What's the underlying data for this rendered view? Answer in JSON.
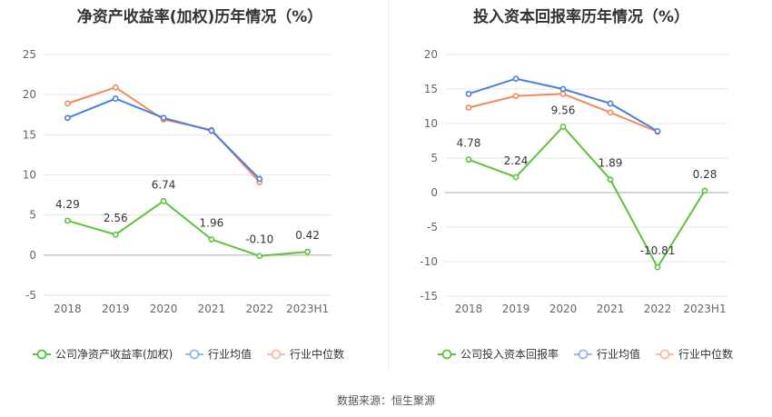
{
  "chart_data": [
    {
      "type": "line",
      "title": "净资产收益率(加权)历年情况（%）",
      "categories": [
        "2018",
        "2019",
        "2020",
        "2021",
        "2022",
        "2023H1"
      ],
      "ylim": [
        -5,
        25
      ],
      "yticks": [
        -5,
        0,
        5,
        10,
        15,
        20,
        25
      ],
      "series": [
        {
          "name": "公司净资产收益率(加权)",
          "color": "#5cc33a",
          "values": [
            4.29,
            2.56,
            6.74,
            1.96,
            -0.1,
            0.42
          ],
          "labels": [
            "4.29",
            "2.56",
            "6.74",
            "1.96",
            "-0.10",
            "0.42"
          ]
        },
        {
          "name": "行业均值",
          "color": "#4a7fd9",
          "values": [
            17.1,
            19.5,
            17.1,
            15.5,
            9.5,
            null
          ]
        },
        {
          "name": "行业中位数",
          "color": "#f08b5d",
          "values": [
            18.9,
            20.9,
            16.9,
            15.6,
            9.1,
            null
          ]
        }
      ],
      "legend": [
        "公司净资产收益率(加权)",
        "行业均值",
        "行业中位数"
      ]
    },
    {
      "type": "line",
      "title": "投入资本回报率历年情况（%）",
      "categories": [
        "2018",
        "2019",
        "2020",
        "2021",
        "2022",
        "2023H1"
      ],
      "ylim": [
        -15,
        20
      ],
      "yticks": [
        -15,
        -10,
        -5,
        0,
        5,
        10,
        15,
        20
      ],
      "series": [
        {
          "name": "公司投入资本回报率",
          "color": "#5cc33a",
          "values": [
            4.78,
            2.24,
            9.56,
            1.89,
            -10.81,
            0.28
          ],
          "labels": [
            "4.78",
            "2.24",
            "9.56",
            "1.89",
            "-10.81",
            "0.28"
          ]
        },
        {
          "name": "行业均值",
          "color": "#4a7fd9",
          "values": [
            14.3,
            16.5,
            15.0,
            12.9,
            8.9,
            null
          ]
        },
        {
          "name": "行业中位数",
          "color": "#f08b5d",
          "values": [
            12.3,
            14.0,
            14.3,
            11.6,
            8.8,
            null
          ]
        }
      ],
      "legend": [
        "公司投入资本回报率",
        "行业均值",
        "行业中位数"
      ]
    }
  ],
  "source": {
    "label": "数据来源：",
    "value": "恒生聚源"
  }
}
